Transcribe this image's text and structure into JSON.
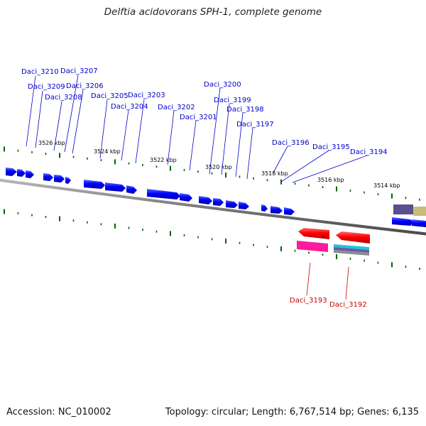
{
  "title": "Delftia acidovorans SPH-1, complete genome",
  "footer": {
    "accession": "Accession: NC_010002",
    "summary": "Topology: circular; Length: 6,767,514 bp; Genes: 6,135"
  },
  "colors": {
    "forward_gene": "#0000ff",
    "reverse_gene": "#ff0000",
    "ticks": "#006400",
    "backbone": "#808080",
    "forward_label": "#0000cc",
    "reverse_label": "#cc0000"
  },
  "scale_labels": [
    "3526 kbp",
    "3524 kbp",
    "3522 kbp",
    "3520 kbp",
    "3518 kbp",
    "3516 kbp",
    "3514 kbp"
  ],
  "forward_gene_labels": [
    "Daci_3210",
    "Daci_3207",
    "Daci_3209",
    "Daci_3206",
    "Daci_3208",
    "Daci_3205",
    "Daci_3203",
    "Daci_3204",
    "Daci_3202",
    "Daci_3201",
    "Daci_3200",
    "Daci_3199",
    "Daci_3198",
    "Daci_3197",
    "Daci_3196",
    "Daci_3195",
    "Daci_3194"
  ],
  "reverse_gene_labels": [
    "Daci_3193",
    "Daci_3192"
  ]
}
